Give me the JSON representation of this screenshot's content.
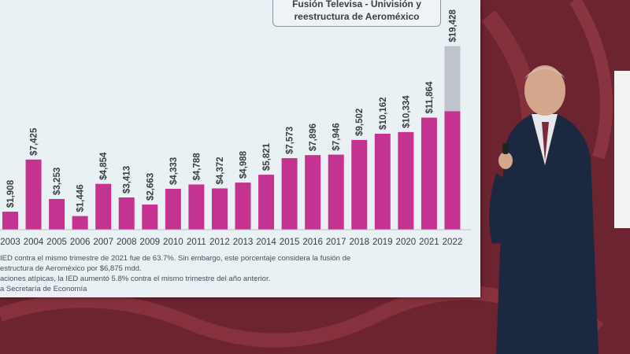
{
  "callout": {
    "line1": "Fusión Televisa - Univisión y",
    "line2": "reestructura de Aeroméxico"
  },
  "notes": {
    "line1": "IED contra el mismo trimestre de 2021 fue de 63.7%. Sin embargo, este porcentaje considera la fusión de",
    "line2": "estructura de Aeroméxico por $6,875 mdd.",
    "line3": "aciones atípicas, la IED aumentó 5.8% contra el mismo trimestre del año anterior.",
    "line4": "a Secretaría de Economía"
  },
  "colors": {
    "bar": "#c4338f",
    "bar_extra": "#bfc3cc",
    "screen_bg": "#e9f1f4",
    "label": "#3a3d44"
  },
  "chart_data": {
    "type": "bar",
    "categories": [
      "2003",
      "2004",
      "2005",
      "2006",
      "2007",
      "2008",
      "2009",
      "2010",
      "2011",
      "2012",
      "2013",
      "2014",
      "2015",
      "2016",
      "2017",
      "2018",
      "2019",
      "2020",
      "2021",
      "2022"
    ],
    "values": [
      1908,
      7425,
      3253,
      1446,
      4854,
      3413,
      2663,
      4333,
      4788,
      4372,
      4988,
      5821,
      7573,
      7896,
      7946,
      9502,
      10162,
      10334,
      11864,
      19428
    ],
    "labels": [
      "$1,908",
      "$7,425",
      "$3,253",
      "$1,446",
      "$4,854",
      "$3,413",
      "$2,663",
      "$4,333",
      "$4,788",
      "$4,372",
      "$4,988",
      "$5,821",
      "$7,573",
      "$7,896",
      "$7,946",
      "$9,502",
      "$10,162",
      "$10,334",
      "$11,864",
      "$19,428"
    ],
    "stacked_extra": {
      "category": "2022",
      "base": 12553,
      "extra": 6875
    },
    "title": "",
    "xlabel": "",
    "ylabel": ""
  }
}
